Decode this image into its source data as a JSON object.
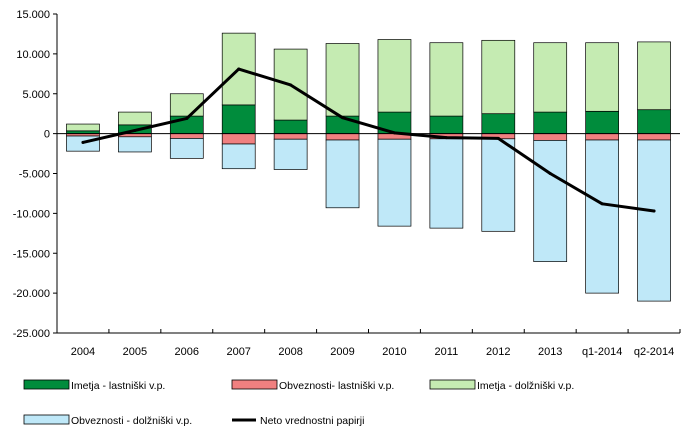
{
  "chart_data": {
    "type": "bar",
    "stacked": true,
    "categories": [
      "2004",
      "2005",
      "2006",
      "2007",
      "2008",
      "2009",
      "2010",
      "2011",
      "2012",
      "2013",
      "q1-2014",
      "q2-2014"
    ],
    "y_tick_labels": [
      "15.000",
      "10.000",
      "5.000",
      "0",
      "-5.000",
      "-10.000",
      "-15.000",
      "-20.000",
      "-25.000"
    ],
    "y_ticks": [
      15000,
      10000,
      5000,
      0,
      -5000,
      -10000,
      -15000,
      -20000,
      -25000
    ],
    "ylim": [
      -25000,
      15000
    ],
    "grid": false,
    "legend_position": "bottom",
    "series": [
      {
        "name": "Imetja - lastniški v.p.",
        "type": "bar",
        "stack": "pos",
        "color": "#008C3C",
        "values": [
          350,
          1100,
          2200,
          3600,
          1700,
          2200,
          2700,
          2200,
          2500,
          2700,
          2800,
          3000
        ]
      },
      {
        "name": "Imetja - dolžniški v.p.",
        "type": "bar",
        "stack": "pos",
        "color": "#C5EBB2",
        "values": [
          850,
          1600,
          2800,
          9000,
          8900,
          9100,
          9100,
          9200,
          9200,
          8700,
          8600,
          8500
        ]
      },
      {
        "name": "Obveznosti - lastniški v.p.",
        "type": "bar",
        "stack": "neg",
        "color": "#F08080",
        "values": [
          -300,
          -400,
          -600,
          -1300,
          -700,
          -800,
          -700,
          -650,
          -650,
          -850,
          -800,
          -800
        ]
      },
      {
        "name": "Obveznosti - dolžniški v.p.",
        "type": "bar",
        "stack": "neg",
        "color": "#BFE8F8",
        "values": [
          -1900,
          -1900,
          -2500,
          -3100,
          -3800,
          -8500,
          -10900,
          -11200,
          -11600,
          -15200,
          -19200,
          -20200
        ]
      },
      {
        "name": "Neto vrednostni papirji",
        "type": "line",
        "color": "#000000",
        "values": [
          -1100,
          400,
          1900,
          8100,
          6100,
          2000,
          100,
          -500,
          -600,
          -5000,
          -8800,
          -9700
        ]
      }
    ],
    "legend_order": [
      "Imetja - lastniški v.p.",
      "Obveznosti- lastniški v.p.",
      "Imetja - dolžniški v.p.",
      "Obveznosti - dolžniški v.p.",
      "Neto vrednostni papirji"
    ]
  },
  "legend": {
    "items": [
      {
        "label": "Imetja - lastniški v.p.",
        "color": "#008C3C",
        "kind": "bar"
      },
      {
        "label": "Obveznosti- lastniški v.p.",
        "color": "#F08080",
        "kind": "bar"
      },
      {
        "label": "Imetja - dolžniški v.p.",
        "color": "#C5EBB2",
        "kind": "bar"
      },
      {
        "label": "Obveznosti - dolžniški v.p.",
        "color": "#BFE8F8",
        "kind": "bar"
      },
      {
        "label": "Neto vrednostni papirji",
        "color": "#000000",
        "kind": "line"
      }
    ]
  }
}
